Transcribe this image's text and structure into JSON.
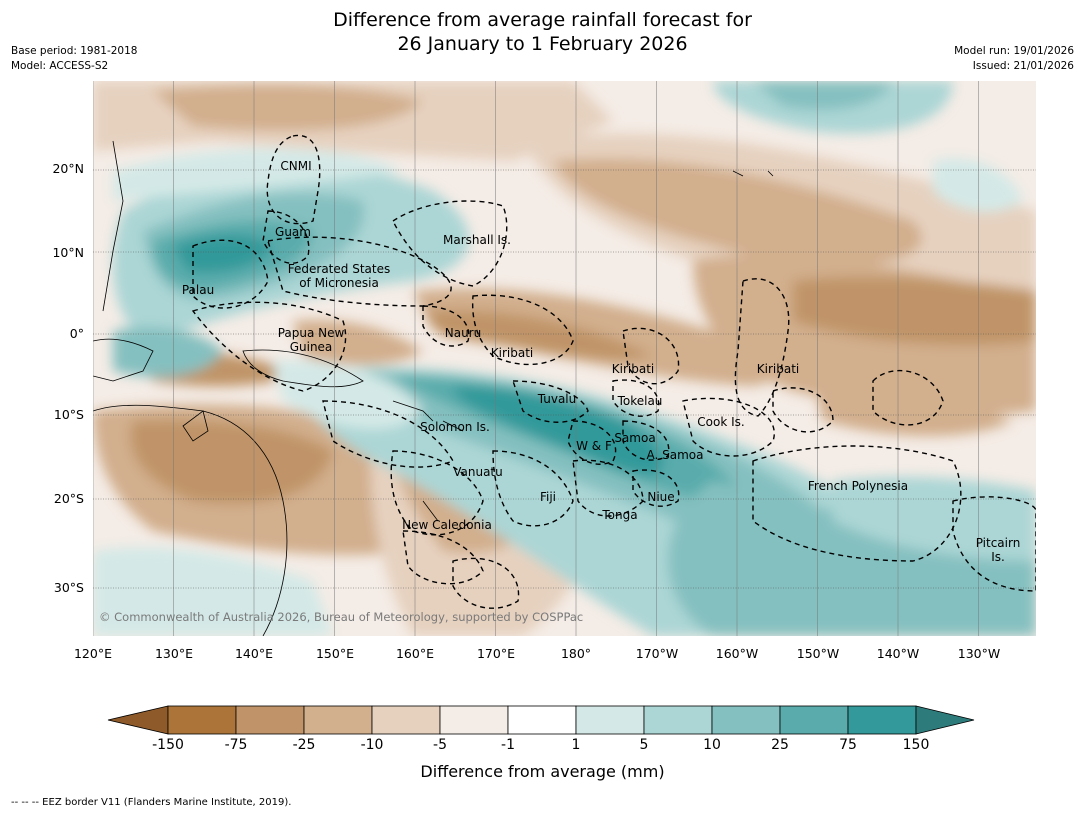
{
  "title_line1": "Difference from average rainfall forecast for",
  "title_line2": "26 January to 1 February 2026",
  "meta_left": [
    "Base period: 1981-2018",
    "Model: ACCESS-S2"
  ],
  "meta_right": [
    "Model run: 19/01/2026",
    "Issued: 21/01/2026"
  ],
  "longitude_labels": [
    "120°E",
    "130°E",
    "140°E",
    "150°E",
    "160°E",
    "170°E",
    "180°",
    "170°W",
    "160°W",
    "150°W",
    "140°W",
    "130°W"
  ],
  "latitude_labels": [
    "20°N",
    "10°N",
    "0°",
    "10°S",
    "20°S",
    "30°S"
  ],
  "regions": [
    "CNMI",
    "Guam",
    "Marshall Is.",
    "Federated States",
    "of Micronesia",
    "Palau",
    "Papua New",
    "Guinea",
    "Nauru",
    "Kiribati",
    "Kiribati",
    "Kiribati",
    "Tuvalu",
    "Tokelau",
    "Cook Is.",
    "Solomon Is.",
    "Samoa",
    "W & F",
    "A. Samoa",
    "Vanuatu",
    "Fiji",
    "Niue",
    "Tonga",
    "French Polynesia",
    "New Caledonia",
    "Pitcairn",
    "Is."
  ],
  "copyright": "© Commonwealth of Australia 2026, Bureau of Meteorology, supported by COSPPac",
  "colorbar": {
    "ticks": [
      "-150",
      "-75",
      "-25",
      "-10",
      "-5",
      "-1",
      "1",
      "5",
      "10",
      "25",
      "75",
      "150"
    ],
    "colors": [
      "#8e5a2a",
      "#ac7438",
      "#c09468",
      "#d2af8d",
      "#e6d1bf",
      "#f4ece6",
      "#ffffff",
      "#d4e9e7",
      "#acd6d5",
      "#85c0c0",
      "#5aacac",
      "#33999a",
      "#2e7b7b"
    ],
    "label": "Difference from average (mm)"
  },
  "footnote": "--  --  -- EEZ border V11 (Flanders Marine Institute, 2019)."
}
